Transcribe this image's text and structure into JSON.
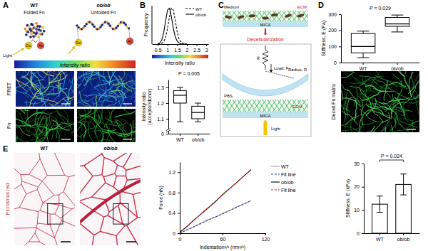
{
  "panel_labels": [
    "A",
    "B",
    "C",
    "D",
    "E"
  ],
  "panel_a": {
    "groups": [
      "WT",
      "ob/ob"
    ],
    "states": [
      "Folded Fn",
      "Unfolded Fn"
    ],
    "light": "Light",
    "donor": "Do",
    "acceptor": "Ac",
    "colorbar_label": "Intensity ratio",
    "rows": [
      "FRET",
      "Fn"
    ]
  },
  "panel_c": {
    "medium": "Medium",
    "ecm": "ECM",
    "mica": "MICA",
    "process": "Decellularization",
    "spring": "k",
    "load": "Load, F",
    "radius": "Radius, R",
    "buffer": "PBS",
    "light": "Light"
  },
  "panel_d": {
    "image_label": "Decell Fn matrix"
  },
  "panel_e": {
    "groups": [
      "WT",
      "ob/ob"
    ],
    "stain": "Picrosirius red"
  },
  "chart_data": [
    {
      "type": "line",
      "x": [
        0.5,
        0.6,
        0.7,
        0.8,
        0.9,
        1.0,
        1.1,
        1.2,
        1.3,
        1.4,
        1.5,
        1.6,
        1.7,
        1.8,
        1.9,
        2.0
      ],
      "series": [
        {
          "name": "WT",
          "color": "#000000",
          "line_style": "dashed",
          "values": [
            0,
            0.01,
            0.02,
            0.06,
            0.18,
            0.42,
            0.75,
            0.98,
            0.93,
            0.65,
            0.33,
            0.13,
            0.05,
            0.02,
            0.01,
            0
          ]
        },
        {
          "name": "ob/ob",
          "color": "#000000",
          "line_style": "solid",
          "values": [
            0.01,
            0.03,
            0.1,
            0.3,
            0.62,
            0.93,
            0.98,
            0.75,
            0.43,
            0.2,
            0.08,
            0.03,
            0.01,
            0,
            0,
            0
          ]
        }
      ],
      "x_label": "Intensity ratio",
      "y_label": "Frequency",
      "xlim": [
        0.2,
        3.1
      ],
      "ylim": [
        0,
        1.05
      ],
      "xticks": [
        0.5,
        1,
        1.5,
        2,
        2.5,
        3
      ],
      "tick_labels": "x",
      "legend": "upper right"
    },
    {
      "type": "box",
      "categories": [
        "WT",
        "ob/ob"
      ],
      "min": [
        1.08,
        1.08
      ],
      "q1": [
        1.2,
        1.1
      ],
      "median": [
        1.25,
        1.14
      ],
      "q3": [
        1.28,
        1.18
      ],
      "max": [
        1.3,
        1.2
      ],
      "color": "#ffffff",
      "y_label": [
        "Intensity ratio",
        "(acceptor/donor)"
      ],
      "ylim": [
        0,
        1.35
      ],
      "yticks": [
        0,
        1.1,
        1.2,
        1.3
      ],
      "annotation": "P = 0.005"
    },
    {
      "type": "box",
      "categories": [
        "WT",
        "ob/ob"
      ],
      "min": [
        30,
        190
      ],
      "q1": [
        60,
        225
      ],
      "median": [
        100,
        240
      ],
      "q3": [
        180,
        280
      ],
      "max": [
        195,
        295
      ],
      "color": "#ffffff",
      "y_label": "Stiffness, E (Pa)",
      "ylim": [
        0,
        300
      ],
      "yticks": [
        0,
        100,
        200,
        300
      ],
      "annotation": "P = 0.029"
    },
    {
      "type": "line",
      "series": [
        {
          "name": "WT",
          "color": "#a0a0a0",
          "line_style": "solid",
          "x": [
            0,
            10,
            20,
            30,
            40,
            50,
            60,
            70,
            80,
            90,
            100
          ],
          "values": [
            0.0,
            0.07,
            0.13,
            0.2,
            0.27,
            0.32,
            0.39,
            0.45,
            0.52,
            0.58,
            0.64
          ]
        },
        {
          "name": "Fit line",
          "color": "#2b3f9e",
          "line_style": "dashed",
          "x": [
            0,
            100
          ],
          "values": [
            0,
            0.64
          ]
        },
        {
          "name": "ob/ob",
          "color": "#000000",
          "line_style": "solid",
          "x": [
            0,
            10,
            20,
            30,
            40,
            50,
            60,
            70,
            80,
            90,
            100
          ],
          "values": [
            0.02,
            0.13,
            0.26,
            0.38,
            0.5,
            0.62,
            0.76,
            0.88,
            1.0,
            1.13,
            1.25
          ]
        },
        {
          "name": "Fit line",
          "color": "#d62020",
          "line_style": "dashed",
          "x": [
            0,
            100
          ],
          "values": [
            0.01,
            1.25
          ]
        }
      ],
      "x_label": "Indentation³/² (nm³/²)",
      "y_label": "Force (nN)",
      "xlim": [
        0,
        120
      ],
      "ylim": [
        0,
        1.4
      ],
      "xticks": [
        0,
        60,
        120
      ],
      "yticks": [
        0,
        0.4,
        0.8,
        1.2
      ],
      "legend": "right"
    },
    {
      "type": "bar",
      "categories": [
        "WT",
        "ob/ob"
      ],
      "values": [
        12.5,
        21
      ],
      "errors": [
        3.5,
        4.5
      ],
      "color": "#ffffff",
      "y_label": "Stiffness, E (kPa)",
      "ylim": [
        0,
        30
      ],
      "yticks": [
        0,
        10,
        20,
        30
      ],
      "annotation": "P = 0.024"
    }
  ]
}
